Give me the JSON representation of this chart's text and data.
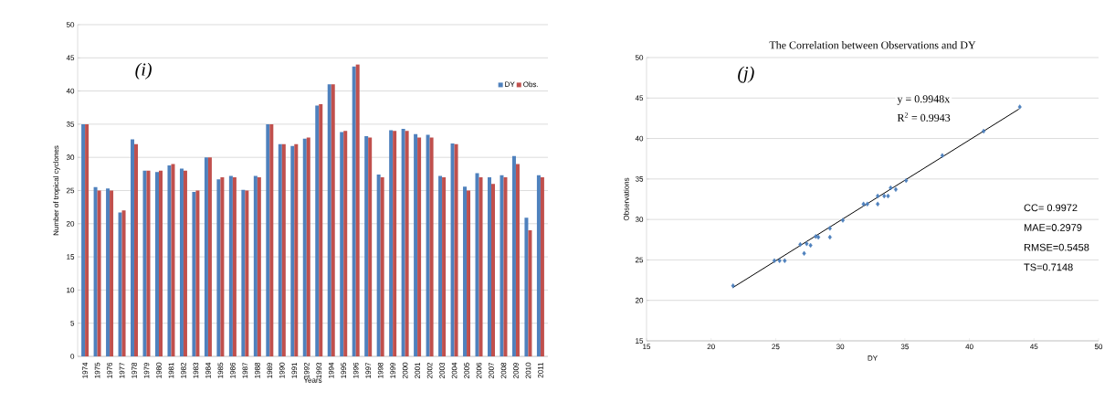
{
  "chart_data": [
    {
      "type": "bar",
      "ylabel": "Number of tropical cyclones",
      "xlabel": "Years",
      "annotations": [
        "(i)"
      ],
      "categories": [
        "1974",
        "1975",
        "1976",
        "1977",
        "1978",
        "1979",
        "1980",
        "1981",
        "1982",
        "1983",
        "1984",
        "1985",
        "1986",
        "1987",
        "1988",
        "1989",
        "1990",
        "1991",
        "1992",
        "1993",
        "1994",
        "1995",
        "1996",
        "1997",
        "1998",
        "1999",
        "2000",
        "2001",
        "2002",
        "2003",
        "2004",
        "2005",
        "2006",
        "2007",
        "2008",
        "2009",
        "2010",
        "2011"
      ],
      "series": [
        {
          "name": "DY",
          "color": "#4f81bd",
          "values": [
            35,
            25.5,
            25.3,
            21.7,
            32.7,
            28,
            27.8,
            28.8,
            28.3,
            24.8,
            30,
            26.7,
            27.2,
            25.1,
            27.2,
            35,
            32,
            31.7,
            32.8,
            37.8,
            41,
            33.8,
            43.7,
            33.2,
            27.4,
            34.1,
            34.3,
            33.5,
            33.4,
            27.2,
            32.1,
            25.6,
            27.6,
            27,
            27.3,
            30.2,
            20.9,
            27.3
          ]
        },
        {
          "name": "Obs.",
          "color": "#c0504d",
          "values": [
            35,
            25,
            25,
            22,
            32,
            28,
            28,
            29,
            28,
            25,
            30,
            27,
            27,
            25,
            27,
            35,
            32,
            32,
            33,
            38,
            41,
            34,
            44,
            33,
            27,
            34,
            34,
            33,
            33,
            27,
            32,
            25,
            27,
            26,
            27,
            29,
            19,
            27
          ]
        }
      ],
      "ylim": [
        0,
        50
      ],
      "yticks": [
        0,
        5,
        10,
        15,
        20,
        25,
        30,
        35,
        40,
        45,
        50
      ],
      "grid": "y",
      "legend": "top right"
    },
    {
      "type": "scatter",
      "title": "The Correlation between Observations and DY",
      "xlabel": "DY",
      "ylabel": "Observations",
      "annotations": [
        "(j)",
        "y = 0.9948x",
        "R$^{2}$ = 0.9943",
        "CC= 0.9972",
        "MAE=0.2979",
        "RMSE=0.5458",
        "TS=0.7148"
      ],
      "series": [
        {
          "color": "#4f81bd",
          "marker": "diamond",
          "x": [
            21.7,
            24.9,
            25.3,
            25.7,
            26.9,
            27.2,
            27.4,
            27.7,
            28.1,
            28.3,
            29.2,
            29.2,
            30.2,
            31.8,
            32.1,
            32.9,
            32.9,
            33.4,
            33.7,
            33.9,
            34.3,
            35.1,
            37.9,
            41.1,
            43.9
          ],
          "values": [
            21.8,
            24.9,
            24.9,
            24.9,
            26.9,
            25.8,
            27,
            26.8,
            27.9,
            27.8,
            27.8,
            28.9,
            29.9,
            31.9,
            31.9,
            31.9,
            32.9,
            32.9,
            32.9,
            33.9,
            33.7,
            34.8,
            37.9,
            40.9,
            43.9
          ]
        },
        {
          "type": "line",
          "color": "#000000",
          "marker": "none",
          "x": [
            21.7,
            43.8
          ],
          "values": [
            21.6,
            43.6
          ]
        }
      ],
      "xlim": [
        15,
        50
      ],
      "xticks": [
        15,
        20,
        25,
        30,
        35,
        40,
        45,
        50
      ],
      "ylim": [
        15,
        50
      ],
      "yticks": [
        15,
        20,
        25,
        30,
        35,
        40,
        45,
        50
      ],
      "grid": "y"
    }
  ]
}
